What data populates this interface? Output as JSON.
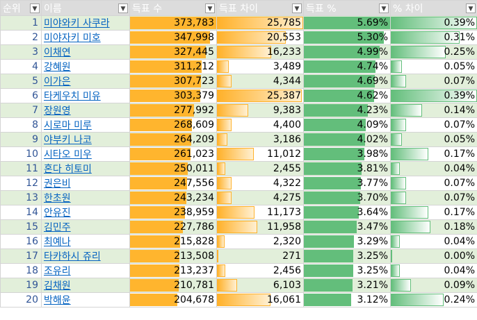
{
  "headers": [
    {
      "label": "순위"
    },
    {
      "label": "이름"
    },
    {
      "label": "득표 수"
    },
    {
      "label": "득표 차이"
    },
    {
      "label": "득표 %"
    },
    {
      "label": "% 차이"
    }
  ],
  "filter_icon": "▼",
  "rows": [
    {
      "rank": "1",
      "name": "미야와키 사쿠라",
      "votes": "373,783",
      "votes_ratio": 1.0,
      "diff": "25,785",
      "diff_ratio": 1.0,
      "pct": "5.69%",
      "pct_ratio": 1.0,
      "pct_diff": "0.39%",
      "pct_diff_ratio": 1.0
    },
    {
      "rank": "2",
      "name": "미야자키 미호",
      "votes": "347,998",
      "votes_ratio": 0.93,
      "diff": "20,553",
      "diff_ratio": 0.797,
      "pct": "5.30%",
      "pct_ratio": 0.93,
      "pct_diff": "0.31%",
      "pct_diff_ratio": 0.795
    },
    {
      "rank": "3",
      "name": "이채연",
      "votes": "327,445",
      "votes_ratio": 0.876,
      "diff": "16,233",
      "diff_ratio": 0.63,
      "pct": "4.99%",
      "pct_ratio": 0.877,
      "pct_diff": "0.25%",
      "pct_diff_ratio": 0.641
    },
    {
      "rank": "4",
      "name": "강혜원",
      "votes": "311,212",
      "votes_ratio": 0.833,
      "diff": "3,489",
      "diff_ratio": 0.135,
      "pct": "4.74%",
      "pct_ratio": 0.833,
      "pct_diff": "0.05%",
      "pct_diff_ratio": 0.128
    },
    {
      "rank": "5",
      "name": "이가은",
      "votes": "307,723",
      "votes_ratio": 0.823,
      "diff": "4,344",
      "diff_ratio": 0.168,
      "pct": "4.69%",
      "pct_ratio": 0.824,
      "pct_diff": "0.07%",
      "pct_diff_ratio": 0.179
    },
    {
      "rank": "6",
      "name": "타케우치 미유",
      "votes": "303,379",
      "votes_ratio": 0.812,
      "diff": "25,387",
      "diff_ratio": 0.985,
      "pct": "4.62%",
      "pct_ratio": 0.812,
      "pct_diff": "0.39%",
      "pct_diff_ratio": 1.0
    },
    {
      "rank": "7",
      "name": "장원영",
      "votes": "277,992",
      "votes_ratio": 0.744,
      "diff": "9,383",
      "diff_ratio": 0.364,
      "pct": "4.23%",
      "pct_ratio": 0.743,
      "pct_diff": "0.14%",
      "pct_diff_ratio": 0.359
    },
    {
      "rank": "8",
      "name": "시로마 미루",
      "votes": "268,609",
      "votes_ratio": 0.719,
      "diff": "4,400",
      "diff_ratio": 0.171,
      "pct": "4.09%",
      "pct_ratio": 0.719,
      "pct_diff": "0.07%",
      "pct_diff_ratio": 0.179
    },
    {
      "rank": "9",
      "name": "야부키 나코",
      "votes": "264,209",
      "votes_ratio": 0.707,
      "diff": "3,186",
      "diff_ratio": 0.124,
      "pct": "4.02%",
      "pct_ratio": 0.707,
      "pct_diff": "0.05%",
      "pct_diff_ratio": 0.128
    },
    {
      "rank": "10",
      "name": "시타오 미우",
      "votes": "261,023",
      "votes_ratio": 0.698,
      "diff": "11,012",
      "diff_ratio": 0.427,
      "pct": "3.98%",
      "pct_ratio": 0.699,
      "pct_diff": "0.17%",
      "pct_diff_ratio": 0.436
    },
    {
      "rank": "11",
      "name": "혼다 히토미",
      "votes": "250,011",
      "votes_ratio": 0.669,
      "diff": "2,455",
      "diff_ratio": 0.095,
      "pct": "3.81%",
      "pct_ratio": 0.67,
      "pct_diff": "0.04%",
      "pct_diff_ratio": 0.103
    },
    {
      "rank": "12",
      "name": "권은비",
      "votes": "247,556",
      "votes_ratio": 0.662,
      "diff": "4,322",
      "diff_ratio": 0.168,
      "pct": "3.77%",
      "pct_ratio": 0.663,
      "pct_diff": "0.07%",
      "pct_diff_ratio": 0.179
    },
    {
      "rank": "13",
      "name": "한초원",
      "votes": "243,234",
      "votes_ratio": 0.651,
      "diff": "4,275",
      "diff_ratio": 0.166,
      "pct": "3.70%",
      "pct_ratio": 0.65,
      "pct_diff": "0.07%",
      "pct_diff_ratio": 0.179
    },
    {
      "rank": "14",
      "name": "안유진",
      "votes": "238,959",
      "votes_ratio": 0.639,
      "diff": "11,173",
      "diff_ratio": 0.433,
      "pct": "3.64%",
      "pct_ratio": 0.64,
      "pct_diff": "0.17%",
      "pct_diff_ratio": 0.436
    },
    {
      "rank": "15",
      "name": "김민주",
      "votes": "227,786",
      "votes_ratio": 0.609,
      "diff": "11,958",
      "diff_ratio": 0.464,
      "pct": "3.47%",
      "pct_ratio": 0.61,
      "pct_diff": "0.18%",
      "pct_diff_ratio": 0.462
    },
    {
      "rank": "16",
      "name": "최예나",
      "votes": "215,828",
      "votes_ratio": 0.577,
      "diff": "2,320",
      "diff_ratio": 0.09,
      "pct": "3.29%",
      "pct_ratio": 0.578,
      "pct_diff": "0.04%",
      "pct_diff_ratio": 0.103
    },
    {
      "rank": "17",
      "name": "타카하시 쥬리",
      "votes": "213,508",
      "votes_ratio": 0.571,
      "diff": "271",
      "diff_ratio": 0.011,
      "pct": "3.25%",
      "pct_ratio": 0.571,
      "pct_diff": "0.00%",
      "pct_diff_ratio": 0.0
    },
    {
      "rank": "18",
      "name": "조유리",
      "votes": "213,237",
      "votes_ratio": 0.57,
      "diff": "2,456",
      "diff_ratio": 0.095,
      "pct": "3.25%",
      "pct_ratio": 0.571,
      "pct_diff": "0.04%",
      "pct_diff_ratio": 0.103
    },
    {
      "rank": "19",
      "name": "김채원",
      "votes": "210,781",
      "votes_ratio": 0.564,
      "diff": "6,103",
      "diff_ratio": 0.237,
      "pct": "3.21%",
      "pct_ratio": 0.564,
      "pct_diff": "0.09%",
      "pct_diff_ratio": 0.231
    },
    {
      "rank": "20",
      "name": "박해윤",
      "votes": "204,678",
      "votes_ratio": 0.548,
      "diff": "16,061",
      "diff_ratio": 0.623,
      "pct": "3.12%",
      "pct_ratio": 0.548,
      "pct_diff": "0.24%",
      "pct_diff_ratio": 0.615
    }
  ]
}
